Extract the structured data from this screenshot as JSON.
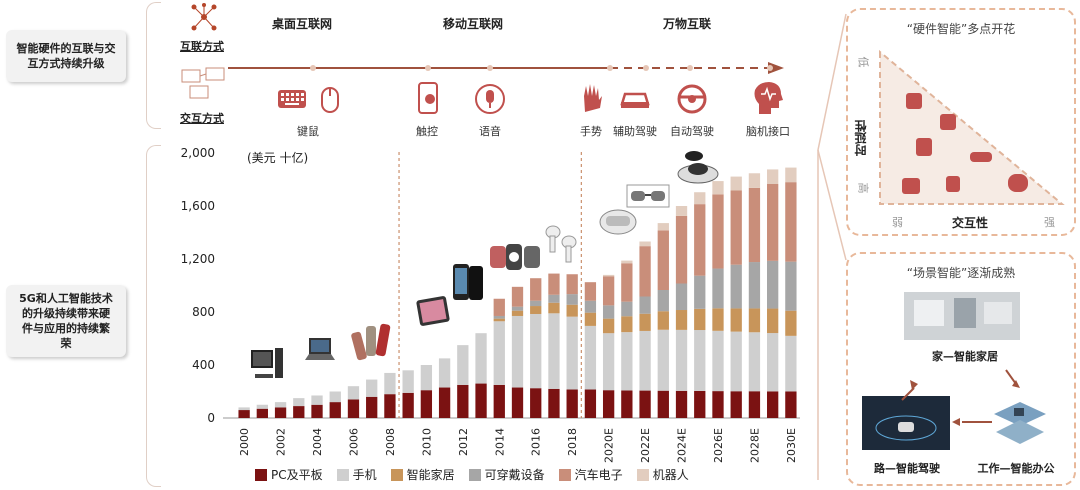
{
  "left_labels": {
    "top": "智能硬件的互联与交互方式持续升级",
    "bottom": "5G和人工智能技术的升级持续带来硬件与应用的持续繁荣"
  },
  "timeline": {
    "row_connect": "互联方式",
    "row_interact": "交互方式",
    "eras": [
      "桌面互联网",
      "移动互联网",
      "万物互联"
    ],
    "interactions": [
      "键鼠",
      "触控",
      "语音",
      "手势",
      "辅助驾驶",
      "自动驾驶",
      "脑机接口"
    ]
  },
  "right_top": {
    "title": "“硬件智能”多点开花",
    "y_axis": "时延性",
    "y_low": "低",
    "y_high": "高",
    "x_axis": "交互性",
    "x_weak": "弱",
    "x_strong": "强"
  },
  "right_bottom": {
    "title": "“场景智能”逐渐成熟",
    "home": "家—智能家居",
    "road": "路—智能驾驶",
    "work": "工作—智能办公"
  },
  "colors": {
    "pc": "#7b1212",
    "phone": "#cfcfcf",
    "home": "#c8955a",
    "wearable": "#a6a6a6",
    "auto": "#c98e7a",
    "robot": "#e2cdbf",
    "accent": "#b5462a"
  },
  "chart_data": {
    "type": "bar",
    "stacked": true,
    "unit_label": "(美元 十亿)",
    "categories": [
      "2000",
      "2001",
      "2002",
      "2003",
      "2004",
      "2005",
      "2006",
      "2007",
      "2008",
      "2009",
      "2010",
      "2011",
      "2012",
      "2013",
      "2014",
      "2015",
      "2016",
      "2017",
      "2018",
      "2019",
      "2020E",
      "2021E",
      "2022E",
      "2023E",
      "2024E",
      "2025E",
      "2026E",
      "2027E",
      "2028E",
      "2029E",
      "2030E"
    ],
    "x_tick_labels": [
      "2000",
      "2002",
      "2004",
      "2006",
      "2008",
      "2010",
      "2012",
      "2014",
      "2016",
      "2018",
      "2020E",
      "2022E",
      "2024E",
      "2026E",
      "2028E",
      "2030E"
    ],
    "ylim": [
      0,
      2000
    ],
    "yticks": [
      "0",
      "400",
      "800",
      "1,200",
      "1,600",
      "2,000"
    ],
    "series": [
      {
        "name": "PC及平板",
        "values": [
          60,
          70,
          80,
          90,
          100,
          120,
          140,
          160,
          180,
          190,
          210,
          230,
          250,
          260,
          250,
          230,
          225,
          220,
          215,
          215,
          210,
          208,
          207,
          206,
          205,
          204,
          203,
          202,
          202,
          201,
          200
        ]
      },
      {
        "name": "手机",
        "values": [
          20,
          30,
          40,
          60,
          70,
          80,
          100,
          130,
          160,
          170,
          190,
          220,
          300,
          380,
          480,
          540,
          560,
          570,
          550,
          480,
          430,
          440,
          450,
          460,
          460,
          460,
          455,
          450,
          445,
          440,
          420
        ]
      },
      {
        "name": "智能家居",
        "values": [
          0,
          0,
          0,
          0,
          0,
          0,
          0,
          0,
          0,
          0,
          0,
          0,
          0,
          0,
          20,
          40,
          60,
          80,
          90,
          100,
          110,
          120,
          130,
          140,
          150,
          160,
          170,
          175,
          180,
          185,
          190
        ]
      },
      {
        "name": "可穿戴设备",
        "values": [
          0,
          0,
          0,
          0,
          0,
          0,
          0,
          0,
          0,
          0,
          0,
          0,
          0,
          0,
          20,
          30,
          40,
          60,
          80,
          90,
          100,
          110,
          130,
          160,
          200,
          250,
          300,
          330,
          350,
          360,
          370
        ]
      },
      {
        "name": "汽车电子",
        "values": [
          0,
          0,
          0,
          0,
          0,
          0,
          0,
          0,
          0,
          0,
          0,
          0,
          0,
          0,
          130,
          150,
          170,
          160,
          150,
          140,
          220,
          290,
          380,
          450,
          510,
          540,
          560,
          560,
          560,
          580,
          600
        ]
      },
      {
        "name": "机器人",
        "values": [
          0,
          0,
          0,
          0,
          0,
          0,
          0,
          0,
          0,
          0,
          0,
          0,
          0,
          0,
          0,
          0,
          0,
          0,
          0,
          0,
          10,
          20,
          35,
          55,
          75,
          90,
          100,
          105,
          110,
          110,
          110
        ]
      }
    ]
  }
}
